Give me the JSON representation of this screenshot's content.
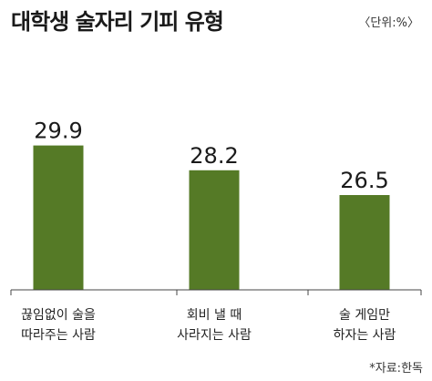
{
  "title": "대학생 술자리 기피 유형",
  "unit": "〈단위:%〉",
  "source": "*자료:한독",
  "colors": {
    "bar": "#557a26",
    "axis": "#444444"
  },
  "chart_data": {
    "type": "bar",
    "categories": [
      [
        "끊임없이 술을",
        "따라주는 사람"
      ],
      [
        "회비 낼 때",
        "사라지는 사람"
      ],
      [
        "술 게임만",
        "하자는 사람"
      ]
    ],
    "values": [
      29.9,
      28.2,
      26.5
    ],
    "value_labels": [
      "29.9",
      "28.2",
      "26.5"
    ],
    "title": "대학생 술자리 기피 유형",
    "xlabel": "",
    "ylabel": "",
    "ylim": [
      20,
      30.5
    ],
    "grid": false,
    "legend": "none"
  }
}
